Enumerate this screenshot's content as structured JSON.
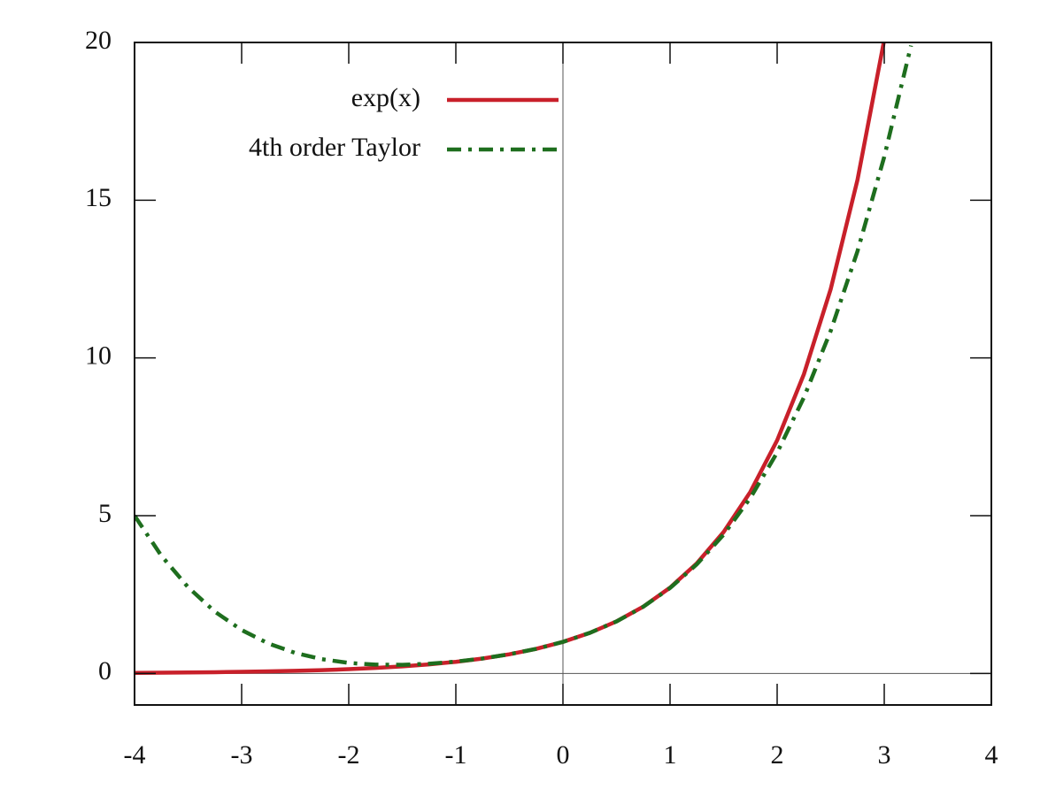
{
  "chart_data": {
    "type": "line",
    "x": [
      -4,
      -3.75,
      -3.5,
      -3.25,
      -3,
      -2.75,
      -2.5,
      -2.25,
      -2,
      -1.75,
      -1.5,
      -1.25,
      -1,
      -0.75,
      -0.5,
      -0.25,
      0,
      0.25,
      0.5,
      0.75,
      1,
      1.25,
      1.5,
      1.75,
      2,
      2.25,
      2.5,
      2.75,
      3,
      3.25
    ],
    "series": [
      {
        "name": "exp(x)",
        "color": "#c8202a",
        "style": "solid",
        "values": [
          0.018,
          0.024,
          0.03,
          0.039,
          0.05,
          0.064,
          0.082,
          0.105,
          0.135,
          0.174,
          0.223,
          0.287,
          0.368,
          0.472,
          0.607,
          0.779,
          1,
          1.284,
          1.649,
          2.117,
          2.718,
          3.49,
          4.482,
          5.755,
          7.389,
          9.488,
          12.182,
          15.643,
          20.086,
          null
        ]
      },
      {
        "name": "4th order Taylor",
        "color": "#1e6e1e",
        "style": "dashdot",
        "values": [
          5,
          3.732,
          2.732,
          1.958,
          1.375,
          0.949,
          0.649,
          0.451,
          0.333,
          0.279,
          0.273,
          0.307,
          0.375,
          0.474,
          0.607,
          0.779,
          1,
          1.284,
          1.648,
          2.114,
          2.708,
          3.459,
          4.398,
          5.565,
          7,
          8.748,
          10.857,
          13.381,
          16.375,
          19.901
        ]
      }
    ],
    "xlim": [
      -4,
      4
    ],
    "xticks": [
      -4,
      -3,
      -2,
      -1,
      0,
      1,
      2,
      3,
      4
    ],
    "ylim": [
      -1,
      20
    ],
    "yticks": [
      0,
      5,
      10,
      15,
      20
    ],
    "zeroaxis": true,
    "legend": "top-center"
  }
}
